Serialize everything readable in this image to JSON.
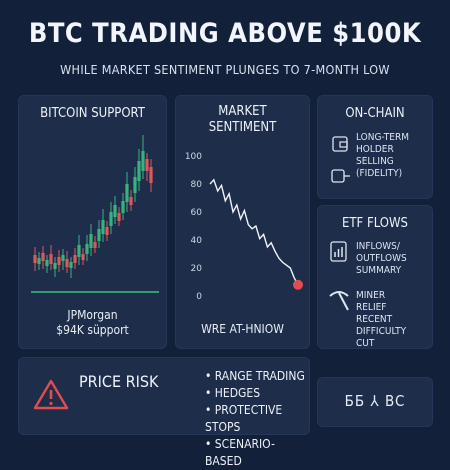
{
  "header": {
    "title": "BTC TRADING ABOVE $100K",
    "subtitle": "WHILE MARKET SENTIMENT PLUNGES TO 7-MONTH LOW"
  },
  "support_panel": {
    "title": "BITCOIN SUPPORT",
    "caption_line1": "JPMorgan",
    "caption_line2": "$94K süpport"
  },
  "sentiment_panel": {
    "title_line1": "MARKET",
    "title_line2": "SENTIMENT",
    "footer": "WRE AT-HNIOW"
  },
  "onchain_panel": {
    "title": "ON-CHAIN",
    "item_line1": "LONG-TERM",
    "item_line2": "HOLDER",
    "item_line3": "SELLING",
    "item_line4": "(FIDELITY)"
  },
  "etf_panel": {
    "title": "ETF FLOWS",
    "flows_line1": "INFLOWS/",
    "flows_line2": "OUTFLOWS",
    "flows_line3": "SUMMARY",
    "miner_line1": "MINER",
    "miner_line2": "RELIEF",
    "miner_line3": "RECENT",
    "miner_line4": "DIFFICULTY",
    "miner_line5": "CUT"
  },
  "risk_panel": {
    "title": "PRICE RISK",
    "bullets": [
      "RANGE TRADING",
      "HEDGES",
      "PROTECTIVE STOPS",
      "SCENARIO-BASED"
    ]
  },
  "brand_panel": {
    "text": "ББ ⅄ BC"
  },
  "chart_data": {
    "type": "line",
    "title": "MARKET SENTIMENT",
    "yticks": [
      0,
      20,
      40,
      60,
      80,
      100
    ],
    "ylim": [
      0,
      100
    ],
    "values": [
      80,
      83,
      75,
      79,
      68,
      73,
      60,
      65,
      55,
      61,
      51,
      48,
      50,
      41,
      44,
      35,
      38,
      32,
      27,
      24,
      22,
      20,
      13,
      8
    ]
  },
  "colors": {
    "background": "#13203a",
    "panel": "#1d2d4a",
    "candle_up": "#36b37e",
    "candle_down": "#e0565b",
    "support_line": "#3fbf7f",
    "alert": "#e04d50"
  }
}
